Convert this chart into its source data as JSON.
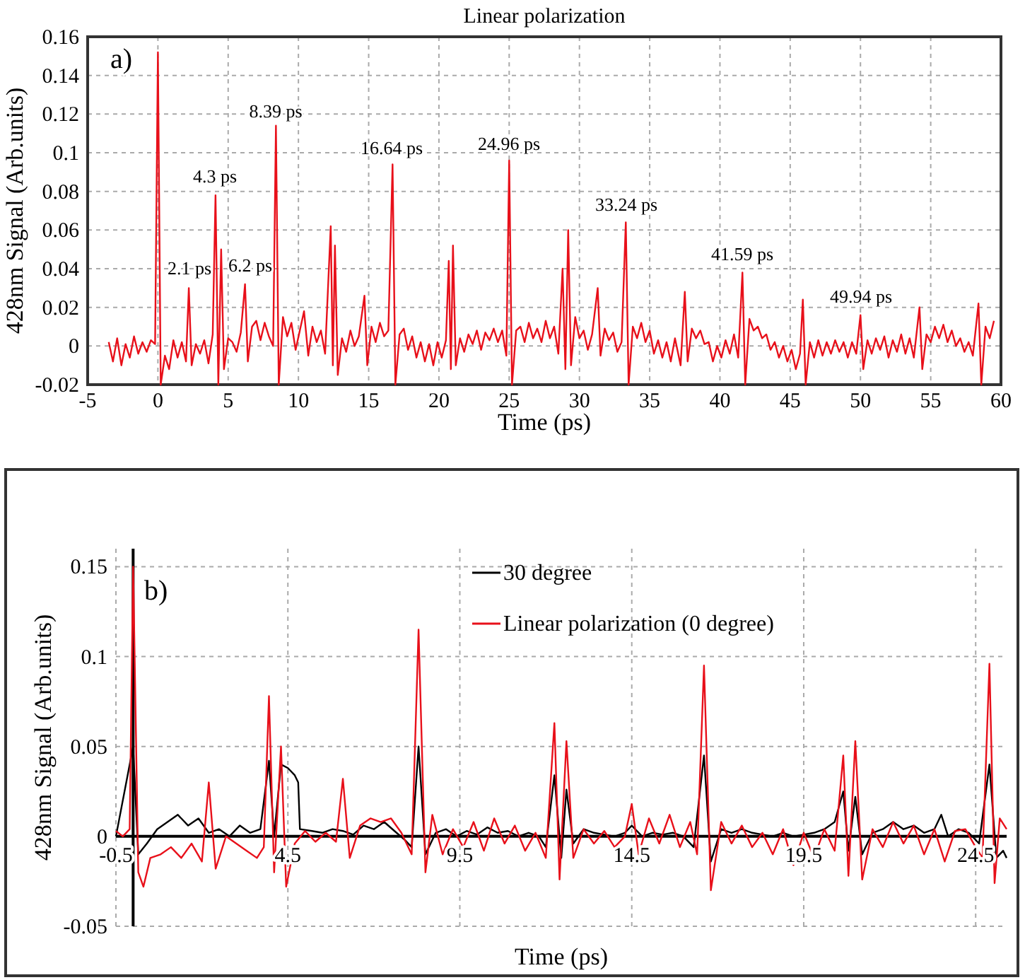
{
  "chart_data": [
    {
      "type": "line",
      "title": "Linear polarization",
      "xlabel": "Time (ps)",
      "ylabel": "428nm Signal (Arb.units)",
      "xlim": [
        -5,
        60
      ],
      "ylim": [
        -0.02,
        0.16
      ],
      "xticks": [
        -5,
        0,
        5,
        10,
        15,
        20,
        25,
        30,
        35,
        40,
        45,
        50,
        55,
        60
      ],
      "yticks": [
        -0.02,
        0,
        0.02,
        0.04,
        0.06,
        0.08,
        0.1,
        0.12,
        0.14,
        0.16
      ],
      "grid": true,
      "legend": false,
      "annotations": [
        "a)",
        "2.1 ps",
        "4.3 ps",
        "6.2 ps",
        "8.39 ps",
        "16.64 ps",
        "24.96 ps",
        "33.24 ps",
        "41.59 ps",
        "49.94 ps"
      ],
      "series": [
        {
          "color": "#e8101a",
          "x": [
            -3.5,
            -3.2,
            -2.9,
            -2.6,
            -2.3,
            -2.0,
            -1.7,
            -1.4,
            -1.1,
            -0.8,
            -0.5,
            -0.2,
            0,
            0.2,
            0.5,
            0.8,
            1.1,
            1.4,
            1.7,
            2.0,
            2.2,
            2.4,
            2.7,
            3.0,
            3.3,
            3.6,
            3.9,
            4.1,
            4.3,
            4.5,
            4.7,
            5.0,
            5.3,
            5.6,
            5.9,
            6.2,
            6.4,
            6.7,
            7.0,
            7.3,
            7.6,
            7.9,
            8.2,
            8.4,
            8.6,
            8.9,
            9.2,
            9.5,
            9.8,
            10.1,
            10.4,
            10.7,
            11.0,
            11.3,
            11.6,
            11.9,
            12.3,
            12.45,
            12.6,
            12.8,
            13.1,
            13.4,
            13.7,
            14.0,
            14.3,
            14.7,
            14.9,
            15.2,
            15.5,
            15.8,
            16.1,
            16.4,
            16.7,
            16.9,
            17.2,
            17.5,
            17.8,
            18.1,
            18.4,
            18.7,
            19.0,
            19.3,
            19.6,
            19.9,
            20.2,
            20.5,
            20.7,
            20.85,
            21.0,
            21.2,
            21.5,
            21.8,
            22.1,
            22.4,
            22.7,
            23.0,
            23.3,
            23.6,
            23.9,
            24.2,
            24.5,
            24.8,
            25.0,
            25.2,
            25.5,
            25.8,
            26.1,
            26.4,
            26.7,
            27.0,
            27.3,
            27.6,
            27.9,
            28.2,
            28.5,
            28.8,
            29.0,
            29.2,
            29.4,
            29.7,
            30.0,
            30.3,
            30.6,
            30.9,
            31.3,
            31.5,
            31.8,
            32.1,
            32.4,
            32.7,
            33.0,
            33.3,
            33.5,
            33.8,
            34.1,
            34.4,
            34.7,
            35.0,
            35.3,
            35.6,
            35.9,
            36.2,
            36.5,
            36.8,
            37.2,
            37.5,
            37.7,
            38.0,
            38.3,
            38.6,
            38.9,
            39.2,
            39.5,
            39.8,
            40.1,
            40.4,
            40.7,
            41.0,
            41.3,
            41.6,
            41.8,
            42.1,
            42.4,
            42.7,
            43.0,
            43.3,
            43.6,
            43.9,
            44.2,
            44.5,
            44.8,
            45.1,
            45.4,
            45.7,
            45.9,
            46.1,
            46.4,
            46.7,
            47.0,
            47.3,
            47.6,
            47.9,
            48.2,
            48.5,
            48.8,
            49.1,
            49.4,
            49.7,
            50.0,
            50.2,
            50.5,
            50.8,
            51.1,
            51.4,
            51.7,
            52.0,
            52.3,
            52.6,
            52.9,
            53.2,
            53.5,
            53.8,
            54.2,
            54.4,
            54.7,
            55.0,
            55.3,
            55.6,
            55.9,
            56.2,
            56.5,
            56.8,
            57.1,
            57.4,
            57.7,
            58.0,
            58.4,
            58.6,
            58.9,
            59.2,
            59.5
          ],
          "values": [
            0.002,
            -0.008,
            0.004,
            -0.01,
            0.001,
            -0.006,
            0.005,
            -0.004,
            0.002,
            -0.003,
            0.003,
            0.001,
            0.152,
            -0.02,
            -0.005,
            -0.012,
            0.003,
            -0.006,
            0.002,
            -0.008,
            0.03,
            -0.01,
            0.001,
            -0.004,
            0.003,
            -0.009,
            0.006,
            0.078,
            -0.02,
            0.05,
            -0.012,
            0.004,
            0.002,
            -0.003,
            0.007,
            0.032,
            -0.008,
            0.01,
            0.013,
            0.003,
            0.012,
            0.005,
            0.0,
            0.114,
            -0.02,
            0.015,
            0.005,
            0.012,
            -0.002,
            0.008,
            0.018,
            -0.005,
            0.01,
            0.002,
            0.008,
            -0.004,
            0.062,
            -0.01,
            0.052,
            -0.015,
            0.004,
            -0.003,
            0.008,
            0.0,
            0.005,
            0.026,
            -0.01,
            0.01,
            0.002,
            0.012,
            0.005,
            0.008,
            0.094,
            -0.02,
            0.006,
            0.009,
            -0.002,
            0.005,
            -0.006,
            0.002,
            -0.008,
            0.001,
            -0.01,
            0.002,
            -0.006,
            0.003,
            0.044,
            -0.012,
            0.052,
            -0.01,
            0.004,
            -0.003,
            0.006,
            0.001,
            0.008,
            -0.002,
            0.007,
            0.003,
            0.009,
            0.002,
            0.008,
            -0.005,
            0.096,
            -0.02,
            0.008,
            0.01,
            0.002,
            0.012,
            0.004,
            0.009,
            0.002,
            0.013,
            0.004,
            0.01,
            -0.004,
            0.04,
            -0.012,
            0.06,
            -0.01,
            0.015,
            0.004,
            0.008,
            -0.002,
            0.006,
            0.03,
            -0.005,
            0.009,
            0.003,
            0.007,
            -0.003,
            0.002,
            0.064,
            -0.02,
            0.01,
            0.004,
            0.012,
            0.002,
            0.008,
            -0.004,
            0.003,
            -0.006,
            0.002,
            -0.008,
            0.004,
            -0.01,
            0.028,
            -0.008,
            0.009,
            0.004,
            0.008,
            0.001,
            0.002,
            -0.008,
            0.0,
            -0.006,
            0.003,
            -0.004,
            0.006,
            -0.006,
            0.038,
            -0.02,
            0.014,
            0.008,
            0.01,
            0.004,
            0.006,
            -0.002,
            0.002,
            -0.006,
            0.0,
            -0.008,
            -0.002,
            -0.012,
            -0.004,
            0.024,
            -0.02,
            0.002,
            -0.006,
            0.003,
            -0.005,
            0.002,
            -0.004,
            0.003,
            -0.003,
            0.002,
            -0.006,
            0.002,
            -0.004,
            0.016,
            -0.012,
            0.003,
            -0.004,
            0.004,
            -0.002,
            0.005,
            -0.006,
            0.003,
            -0.003,
            0.006,
            -0.004,
            0.004,
            -0.006,
            0.02,
            -0.012,
            0.006,
            0.002,
            0.01,
            0.004,
            0.011,
            0.002,
            0.008,
            0.0,
            0.004,
            -0.003,
            0.002,
            -0.005,
            0.022,
            -0.02,
            0.01,
            0.004,
            0.013
          ]
        }
      ]
    },
    {
      "type": "line",
      "xlabel": "Time (ps)",
      "ylabel": "428nm Signal (Arb.units)",
      "xlim": [
        -0.5,
        25.4
      ],
      "ylim": [
        -0.05,
        0.16
      ],
      "xticks": [
        -0.5,
        4.5,
        9.5,
        14.5,
        19.5,
        24.5
      ],
      "yticks": [
        -0.05,
        0,
        0.05,
        0.1,
        0.15
      ],
      "grid": true,
      "legend": "top",
      "annotations": [
        "b)"
      ],
      "series": [
        {
          "name": "30 degree",
          "color": "#000000",
          "x": [
            -0.5,
            0.0,
            0.15,
            0.4,
            0.7,
            1.0,
            1.3,
            1.6,
            1.9,
            2.2,
            2.5,
            2.8,
            3.1,
            3.4,
            3.7,
            3.95,
            4.1,
            4.3,
            4.5,
            4.7,
            4.8,
            4.85,
            5.2,
            5.5,
            5.8,
            6.1,
            6.4,
            6.7,
            7.0,
            7.3,
            7.6,
            7.9,
            8.1,
            8.3,
            8.5,
            8.8,
            9.1,
            9.4,
            9.7,
            10.0,
            10.3,
            10.6,
            10.9,
            11.2,
            11.5,
            11.8,
            12.0,
            12.25,
            12.45,
            12.6,
            12.8,
            13.1,
            13.4,
            13.7,
            14.0,
            14.3,
            14.5,
            14.8,
            15.1,
            15.4,
            15.7,
            16.0,
            16.3,
            16.6,
            16.8,
            17.1,
            17.4,
            17.7,
            18.0,
            18.3,
            18.6,
            18.9,
            19.2,
            19.5,
            19.8,
            20.1,
            20.4,
            20.65,
            20.8,
            21.0,
            21.2,
            21.5,
            21.8,
            22.1,
            22.4,
            22.7,
            23.0,
            23.3,
            23.5,
            23.7,
            24.0,
            24.3,
            24.6,
            24.9,
            25.1,
            25.3,
            25.4
          ],
          "values": [
            0.0,
            0.05,
            -0.01,
            -0.004,
            0.004,
            0.008,
            0.012,
            0.006,
            0.01,
            0.002,
            0.004,
            0.0,
            0.006,
            0.002,
            0.004,
            0.042,
            0.0,
            0.04,
            0.038,
            0.034,
            0.03,
            0.004,
            0.003,
            0.002,
            0.004,
            0.003,
            0.001,
            0.006,
            0.004,
            0.008,
            0.003,
            -0.002,
            -0.006,
            0.05,
            -0.01,
            0.002,
            0.004,
            0.0,
            0.003,
            0.001,
            0.005,
            0.002,
            0.003,
            0.0,
            0.002,
            0.0,
            -0.006,
            0.034,
            -0.012,
            0.026,
            -0.004,
            0.004,
            0.002,
            0.001,
            0.0,
            0.002,
            0.006,
            0.0,
            0.002,
            0.001,
            0.002,
            0.0,
            -0.006,
            0.045,
            -0.014,
            0.004,
            0.002,
            0.004,
            0.002,
            0.001,
            0.0,
            0.002,
            0.0,
            0.001,
            0.002,
            0.004,
            0.008,
            0.025,
            -0.008,
            0.022,
            -0.01,
            0.002,
            0.004,
            0.008,
            0.004,
            0.006,
            0.002,
            0.004,
            0.012,
            0.0,
            0.004,
            0.002,
            -0.004,
            0.04,
            -0.012,
            -0.008,
            -0.012
          ]
        },
        {
          "name": "Linear polarization (0 degree)",
          "color": "#e8101a",
          "x": [
            -0.5,
            -0.3,
            -0.1,
            0.0,
            0.15,
            0.3,
            0.5,
            0.8,
            1.1,
            1.4,
            1.7,
            2.0,
            2.2,
            2.4,
            2.7,
            3.0,
            3.3,
            3.6,
            3.8,
            3.95,
            4.1,
            4.3,
            4.45,
            4.7,
            5.0,
            5.3,
            5.6,
            5.9,
            6.1,
            6.3,
            6.6,
            6.9,
            7.2,
            7.5,
            7.8,
            8.1,
            8.3,
            8.5,
            8.7,
            9.0,
            9.3,
            9.6,
            9.9,
            10.2,
            10.5,
            10.8,
            11.1,
            11.4,
            11.7,
            12.0,
            12.25,
            12.4,
            12.6,
            12.8,
            13.1,
            13.4,
            13.7,
            14.0,
            14.3,
            14.5,
            14.7,
            15.0,
            15.3,
            15.6,
            15.9,
            16.2,
            16.4,
            16.6,
            16.8,
            17.1,
            17.4,
            17.7,
            18.0,
            18.3,
            18.6,
            18.9,
            19.2,
            19.5,
            19.8,
            20.1,
            20.4,
            20.65,
            20.8,
            21.0,
            21.2,
            21.5,
            21.8,
            22.1,
            22.4,
            22.7,
            23.0,
            23.3,
            23.6,
            23.9,
            24.2,
            24.5,
            24.7,
            24.9,
            25.05,
            25.2,
            25.4
          ],
          "values": [
            0.003,
            0.0,
            0.004,
            0.15,
            -0.02,
            -0.028,
            -0.012,
            -0.01,
            -0.006,
            -0.012,
            -0.004,
            -0.014,
            0.03,
            -0.018,
            0.0,
            -0.004,
            -0.008,
            -0.012,
            -0.006,
            0.078,
            -0.02,
            0.05,
            -0.028,
            -0.004,
            0.003,
            -0.003,
            0.002,
            -0.003,
            0.032,
            -0.012,
            0.006,
            0.01,
            0.008,
            0.01,
            0.002,
            -0.01,
            0.115,
            -0.02,
            0.012,
            -0.01,
            0.004,
            -0.006,
            0.008,
            -0.008,
            0.01,
            -0.004,
            0.006,
            -0.008,
            0.002,
            -0.012,
            0.063,
            -0.024,
            0.053,
            -0.012,
            0.004,
            -0.004,
            0.003,
            -0.006,
            0.0,
            0.018,
            -0.01,
            0.01,
            -0.004,
            0.012,
            -0.006,
            0.008,
            -0.01,
            0.095,
            -0.03,
            0.008,
            -0.004,
            0.006,
            -0.006,
            0.002,
            -0.01,
            0.004,
            -0.016,
            0.002,
            -0.012,
            0.004,
            -0.008,
            0.045,
            -0.022,
            0.053,
            -0.024,
            0.004,
            -0.006,
            0.008,
            -0.004,
            0.006,
            -0.01,
            0.004,
            -0.014,
            0.003,
            0.004,
            -0.006,
            -0.012,
            0.096,
            -0.026,
            0.01,
            0.004
          ]
        }
      ]
    }
  ]
}
